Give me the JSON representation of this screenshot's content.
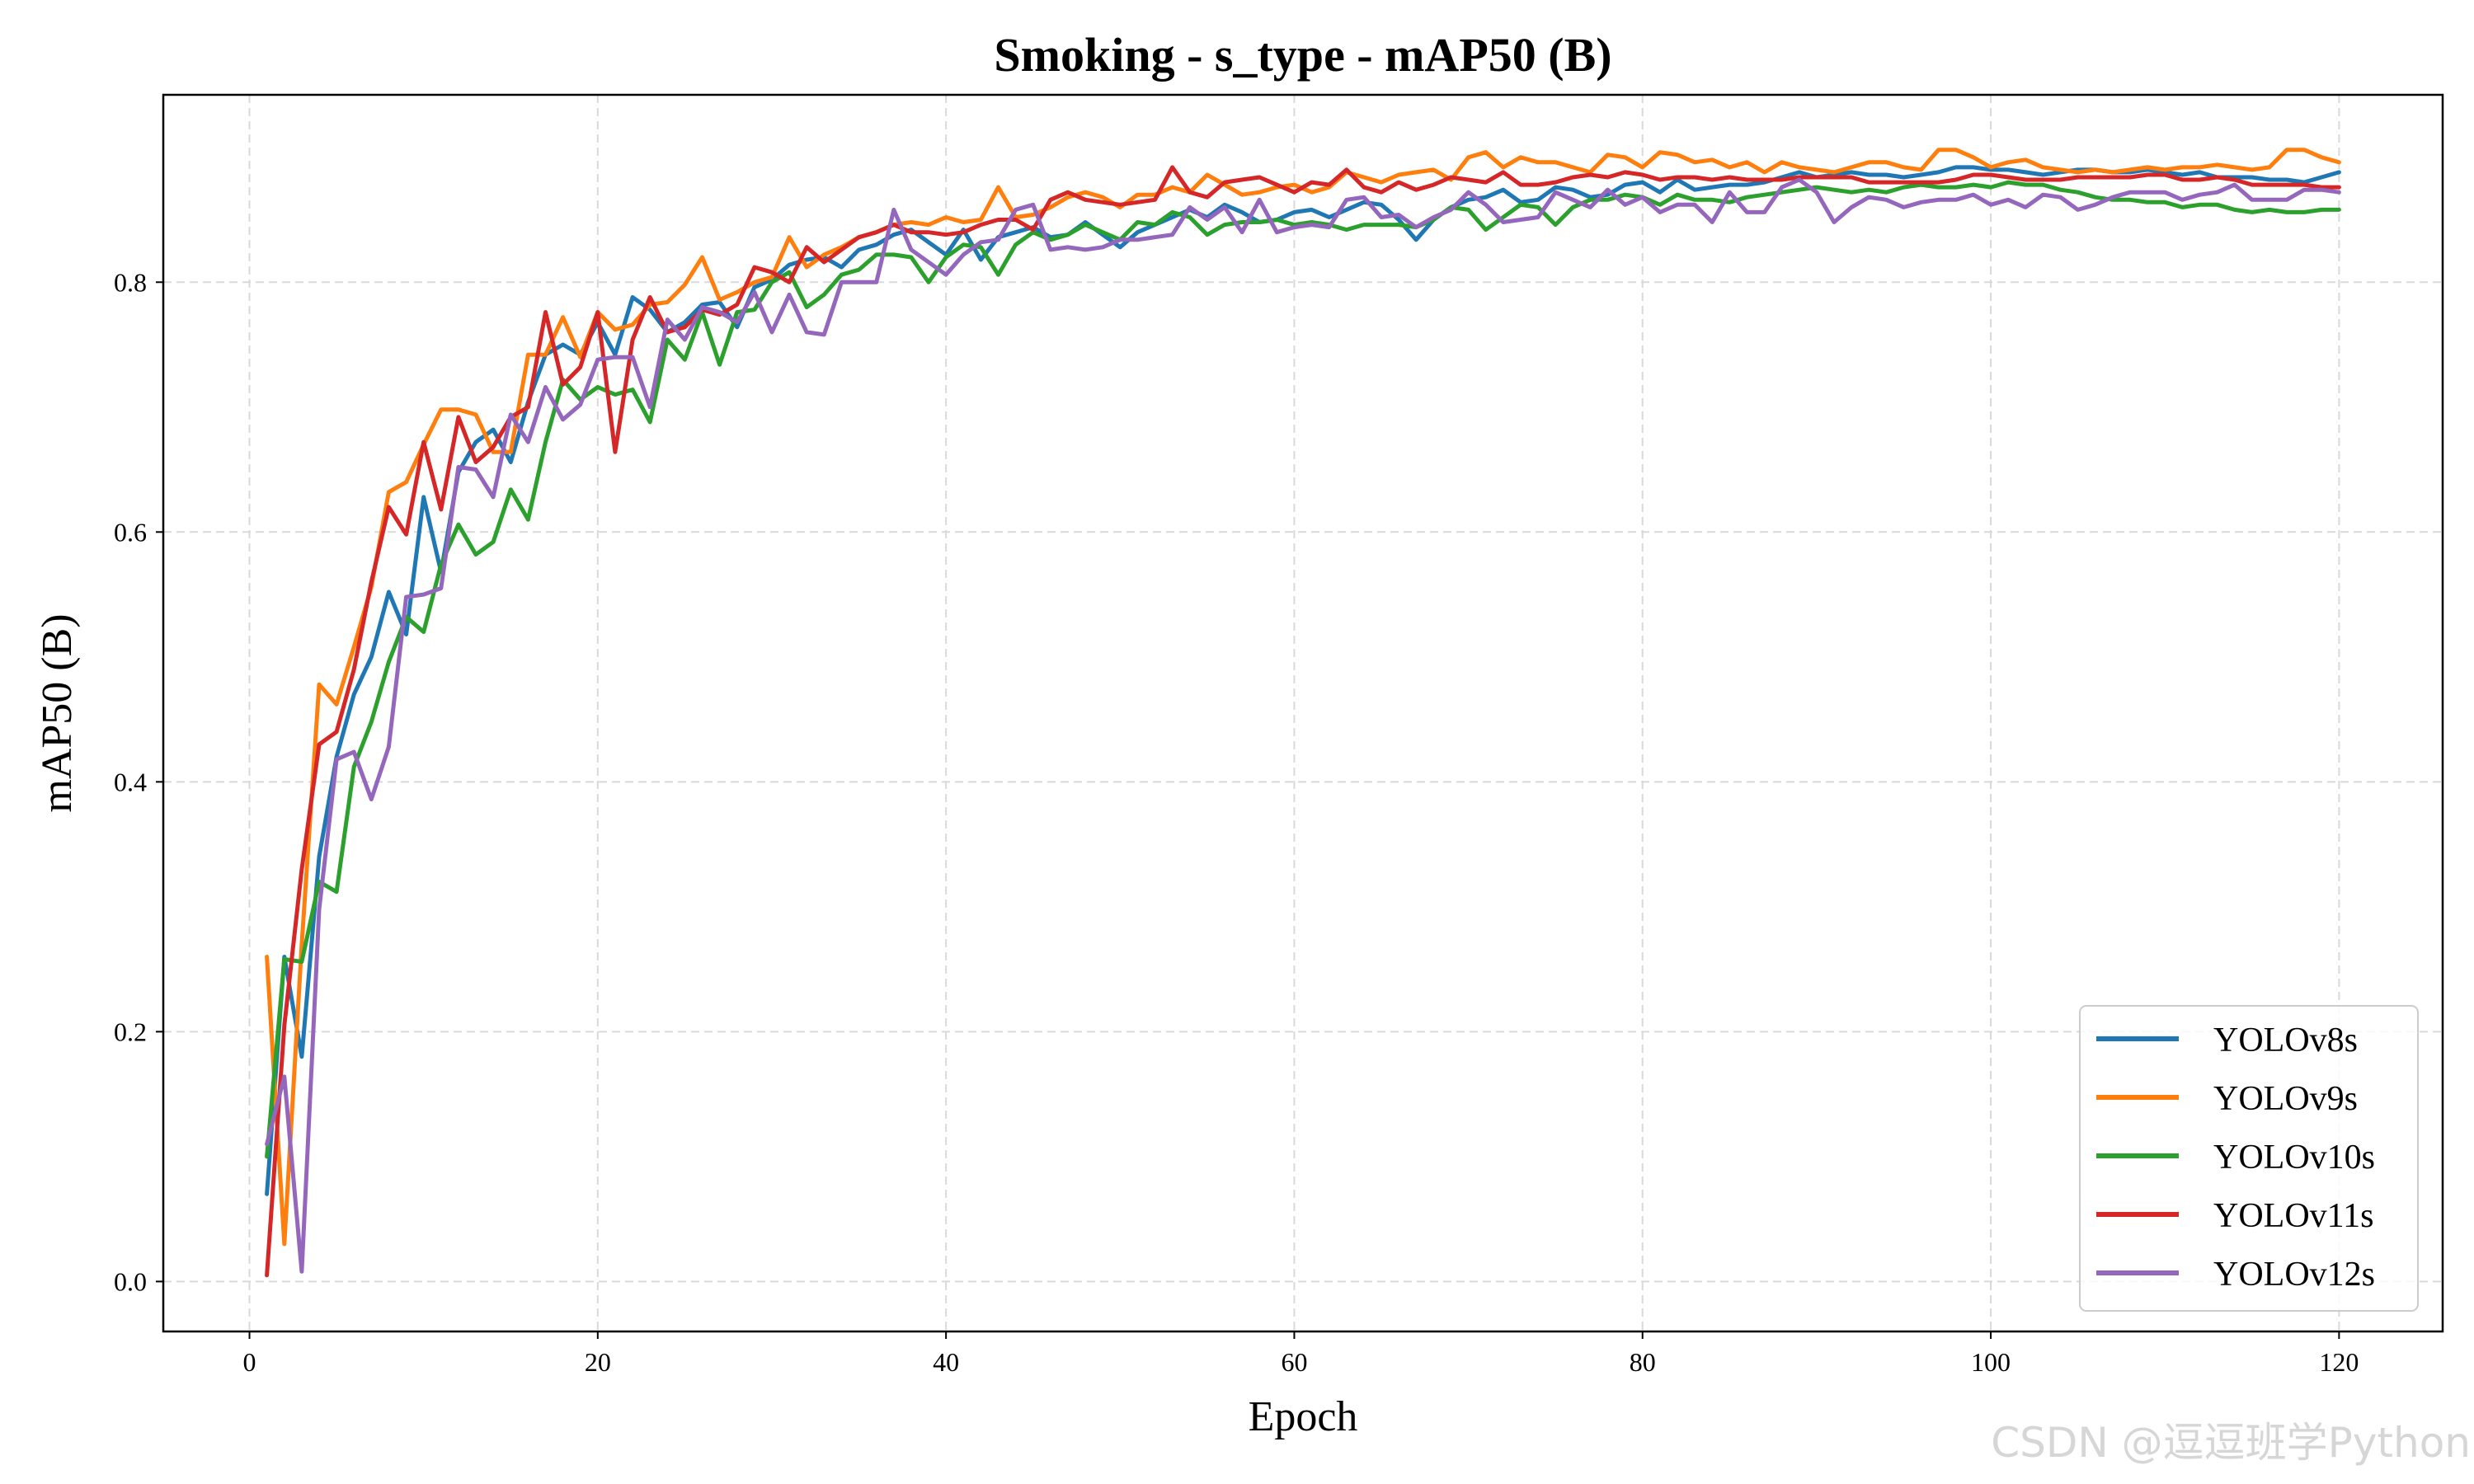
{
  "chart_data": {
    "type": "line",
    "title": "Smoking - s_type - mAP50 (B)",
    "xlabel": "Epoch",
    "ylabel": "mAP50 (B)",
    "xlim": [
      -4.95,
      125.95
    ],
    "ylim": [
      -0.04,
      0.95
    ],
    "xticks": [
      0,
      20,
      40,
      60,
      80,
      100,
      120
    ],
    "xtick_labels": [
      "0",
      "20",
      "40",
      "60",
      "80",
      "100",
      "120"
    ],
    "yticks": [
      0.0,
      0.2,
      0.4,
      0.6,
      0.8
    ],
    "ytick_labels": [
      "0.0",
      "0.2",
      "0.4",
      "0.6",
      "0.8"
    ],
    "grid": true,
    "legend_position": "lower-right",
    "x": [
      1,
      2,
      3,
      4,
      5,
      6,
      7,
      8,
      9,
      10,
      11,
      12,
      13,
      14,
      15,
      16,
      17,
      18,
      19,
      20,
      21,
      22,
      23,
      24,
      25,
      26,
      27,
      28,
      29,
      30,
      31,
      32,
      33,
      34,
      35,
      36,
      37,
      38,
      39,
      40,
      41,
      42,
      43,
      44,
      45,
      46,
      47,
      48,
      49,
      50,
      51,
      52,
      53,
      54,
      55,
      56,
      57,
      58,
      59,
      60,
      61,
      62,
      63,
      64,
      65,
      66,
      67,
      68,
      69,
      70,
      71,
      72,
      73,
      74,
      75,
      76,
      77,
      78,
      79,
      80,
      81,
      82,
      83,
      84,
      85,
      86,
      87,
      88,
      89,
      90,
      91,
      92,
      93,
      94,
      95,
      96,
      97,
      98,
      99,
      100,
      101,
      102,
      103,
      104,
      105,
      106,
      107,
      108,
      109,
      110,
      111,
      112,
      113,
      114,
      115,
      116,
      117,
      118,
      119,
      120
    ],
    "series": [
      {
        "name": "YOLOv8s",
        "color": "#1f77b4",
        "values": [
          0.07,
          0.26,
          0.18,
          0.34,
          0.42,
          0.47,
          0.5,
          0.552,
          0.518,
          0.628,
          0.568,
          0.648,
          0.672,
          0.682,
          0.656,
          0.704,
          0.742,
          0.75,
          0.742,
          0.768,
          0.742,
          0.788,
          0.778,
          0.76,
          0.768,
          0.782,
          0.784,
          0.764,
          0.796,
          0.802,
          0.814,
          0.818,
          0.82,
          0.812,
          0.826,
          0.83,
          0.838,
          0.842,
          0.832,
          0.822,
          0.842,
          0.818,
          0.836,
          0.84,
          0.844,
          0.836,
          0.838,
          0.848,
          0.838,
          0.828,
          0.84,
          0.846,
          0.852,
          0.858,
          0.852,
          0.862,
          0.856,
          0.848,
          0.85,
          0.856,
          0.858,
          0.852,
          0.858,
          0.864,
          0.862,
          0.85,
          0.834,
          0.85,
          0.86,
          0.866,
          0.868,
          0.874,
          0.864,
          0.866,
          0.876,
          0.874,
          0.868,
          0.87,
          0.878,
          0.88,
          0.872,
          0.882,
          0.874,
          0.876,
          0.878,
          0.878,
          0.88,
          0.884,
          0.888,
          0.884,
          0.886,
          0.888,
          0.886,
          0.886,
          0.884,
          0.886,
          0.888,
          0.892,
          0.892,
          0.89,
          0.89,
          0.888,
          0.886,
          0.888,
          0.89,
          0.89,
          0.888,
          0.888,
          0.89,
          0.888,
          0.886,
          0.888,
          0.884,
          0.884,
          0.884,
          0.882,
          0.882,
          0.88,
          0.884,
          0.888
        ]
      },
      {
        "name": "YOLOv9s",
        "color": "#ff7f0e",
        "values": [
          0.26,
          0.03,
          0.27,
          0.478,
          0.462,
          0.508,
          0.556,
          0.632,
          0.64,
          0.67,
          0.698,
          0.698,
          0.694,
          0.664,
          0.664,
          0.742,
          0.742,
          0.772,
          0.74,
          0.776,
          0.762,
          0.766,
          0.782,
          0.784,
          0.798,
          0.82,
          0.786,
          0.792,
          0.8,
          0.804,
          0.836,
          0.812,
          0.822,
          0.828,
          0.836,
          0.84,
          0.846,
          0.848,
          0.846,
          0.852,
          0.848,
          0.85,
          0.876,
          0.852,
          0.854,
          0.86,
          0.868,
          0.872,
          0.868,
          0.86,
          0.87,
          0.87,
          0.876,
          0.872,
          0.886,
          0.878,
          0.87,
          0.872,
          0.876,
          0.878,
          0.872,
          0.876,
          0.888,
          0.884,
          0.88,
          0.886,
          0.888,
          0.89,
          0.882,
          0.9,
          0.904,
          0.892,
          0.9,
          0.896,
          0.896,
          0.892,
          0.888,
          0.902,
          0.9,
          0.892,
          0.904,
          0.902,
          0.896,
          0.898,
          0.892,
          0.896,
          0.888,
          0.896,
          0.892,
          0.89,
          0.888,
          0.892,
          0.896,
          0.896,
          0.892,
          0.89,
          0.906,
          0.906,
          0.9,
          0.892,
          0.896,
          0.898,
          0.892,
          0.89,
          0.888,
          0.89,
          0.888,
          0.89,
          0.892,
          0.89,
          0.892,
          0.892,
          0.894,
          0.892,
          0.89,
          0.892,
          0.906,
          0.906,
          0.9,
          0.896
        ]
      },
      {
        "name": "YOLOv10s",
        "color": "#2ca02c",
        "values": [
          0.1,
          0.258,
          0.256,
          0.32,
          0.312,
          0.412,
          0.448,
          0.496,
          0.532,
          0.52,
          0.574,
          0.606,
          0.582,
          0.592,
          0.634,
          0.61,
          0.672,
          0.722,
          0.706,
          0.716,
          0.71,
          0.714,
          0.688,
          0.754,
          0.738,
          0.776,
          0.734,
          0.776,
          0.778,
          0.8,
          0.808,
          0.78,
          0.79,
          0.806,
          0.81,
          0.822,
          0.822,
          0.82,
          0.8,
          0.82,
          0.83,
          0.828,
          0.806,
          0.83,
          0.84,
          0.834,
          0.838,
          0.846,
          0.84,
          0.834,
          0.848,
          0.846,
          0.856,
          0.852,
          0.838,
          0.846,
          0.848,
          0.848,
          0.85,
          0.846,
          0.848,
          0.846,
          0.842,
          0.846,
          0.846,
          0.846,
          0.844,
          0.85,
          0.86,
          0.858,
          0.842,
          0.852,
          0.862,
          0.86,
          0.846,
          0.86,
          0.866,
          0.866,
          0.87,
          0.868,
          0.862,
          0.87,
          0.866,
          0.866,
          0.864,
          0.868,
          0.87,
          0.872,
          0.874,
          0.876,
          0.874,
          0.872,
          0.874,
          0.872,
          0.876,
          0.878,
          0.876,
          0.876,
          0.878,
          0.876,
          0.88,
          0.878,
          0.878,
          0.874,
          0.872,
          0.868,
          0.866,
          0.866,
          0.864,
          0.864,
          0.86,
          0.862,
          0.862,
          0.858,
          0.856,
          0.858,
          0.856,
          0.856,
          0.858,
          0.858
        ]
      },
      {
        "name": "YOLOv11s",
        "color": "#d62728",
        "values": [
          0.005,
          0.205,
          0.33,
          0.43,
          0.44,
          0.49,
          0.56,
          0.62,
          0.598,
          0.672,
          0.618,
          0.692,
          0.656,
          0.668,
          0.692,
          0.7,
          0.776,
          0.718,
          0.732,
          0.776,
          0.664,
          0.754,
          0.788,
          0.76,
          0.764,
          0.778,
          0.774,
          0.782,
          0.812,
          0.808,
          0.8,
          0.828,
          0.816,
          0.826,
          0.836,
          0.84,
          0.846,
          0.84,
          0.84,
          0.838,
          0.84,
          0.846,
          0.85,
          0.85,
          0.842,
          0.866,
          0.872,
          0.866,
          0.864,
          0.862,
          0.864,
          0.866,
          0.892,
          0.872,
          0.868,
          0.88,
          0.882,
          0.884,
          0.878,
          0.872,
          0.88,
          0.878,
          0.89,
          0.876,
          0.872,
          0.88,
          0.874,
          0.878,
          0.884,
          0.882,
          0.88,
          0.888,
          0.878,
          0.878,
          0.88,
          0.884,
          0.886,
          0.884,
          0.888,
          0.886,
          0.882,
          0.884,
          0.884,
          0.882,
          0.884,
          0.882,
          0.882,
          0.882,
          0.884,
          0.884,
          0.884,
          0.884,
          0.88,
          0.88,
          0.88,
          0.88,
          0.88,
          0.882,
          0.886,
          0.886,
          0.884,
          0.882,
          0.882,
          0.882,
          0.884,
          0.884,
          0.884,
          0.884,
          0.886,
          0.886,
          0.882,
          0.882,
          0.884,
          0.882,
          0.878,
          0.878,
          0.878,
          0.878,
          0.876,
          0.876
        ]
      },
      {
        "name": "YOLOv12s",
        "color": "#9467bd",
        "values": [
          0.11,
          0.164,
          0.008,
          0.298,
          0.418,
          0.424,
          0.386,
          0.428,
          0.548,
          0.55,
          0.555,
          0.652,
          0.65,
          0.628,
          0.694,
          0.672,
          0.716,
          0.69,
          0.702,
          0.738,
          0.74,
          0.74,
          0.7,
          0.77,
          0.754,
          0.78,
          0.776,
          0.768,
          0.792,
          0.76,
          0.79,
          0.76,
          0.758,
          0.8,
          0.8,
          0.8,
          0.858,
          0.826,
          0.816,
          0.806,
          0.822,
          0.832,
          0.834,
          0.858,
          0.862,
          0.826,
          0.828,
          0.826,
          0.828,
          0.834,
          0.834,
          0.836,
          0.838,
          0.86,
          0.85,
          0.86,
          0.84,
          0.866,
          0.84,
          0.844,
          0.846,
          0.844,
          0.866,
          0.868,
          0.852,
          0.854,
          0.844,
          0.852,
          0.858,
          0.872,
          0.862,
          0.848,
          0.85,
          0.852,
          0.872,
          0.866,
          0.86,
          0.874,
          0.862,
          0.868,
          0.856,
          0.862,
          0.862,
          0.848,
          0.872,
          0.856,
          0.856,
          0.876,
          0.882,
          0.872,
          0.848,
          0.86,
          0.868,
          0.866,
          0.86,
          0.864,
          0.866,
          0.866,
          0.87,
          0.862,
          0.866,
          0.86,
          0.87,
          0.868,
          0.858,
          0.862,
          0.868,
          0.872,
          0.872,
          0.872,
          0.866,
          0.87,
          0.872,
          0.878,
          0.866,
          0.866,
          0.866,
          0.874,
          0.874,
          0.872
        ]
      }
    ]
  },
  "watermark": "CSDN @逗逗班学Python"
}
